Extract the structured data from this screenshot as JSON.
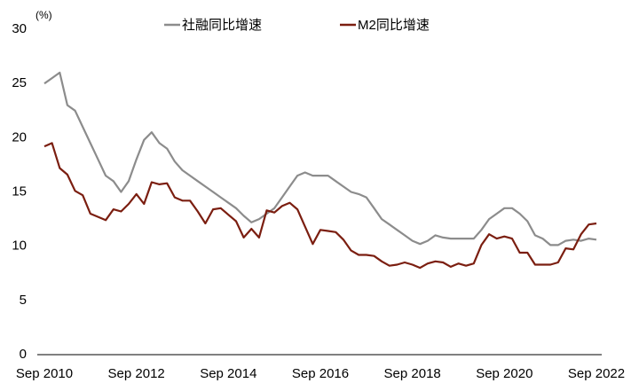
{
  "chart_data": {
    "type": "line",
    "y_label": "(%)",
    "categories": [
      "Sep 2010",
      null,
      null,
      null,
      null,
      null,
      null,
      null,
      null,
      null,
      null,
      null,
      "Sep 2012",
      null,
      null,
      null,
      null,
      null,
      null,
      null,
      null,
      null,
      null,
      null,
      "Sep 2014",
      null,
      null,
      null,
      null,
      null,
      null,
      null,
      null,
      null,
      null,
      null,
      "Sep 2016",
      null,
      null,
      null,
      null,
      null,
      null,
      null,
      null,
      null,
      null,
      null,
      "Sep 2018",
      null,
      null,
      null,
      null,
      null,
      null,
      null,
      null,
      null,
      null,
      null,
      "Sep 2020",
      null,
      null,
      null,
      null,
      null,
      null,
      null,
      null,
      null,
      null,
      null,
      "Sep 2022"
    ],
    "series": [
      {
        "name": "社融同比增速",
        "color": "#8c8c8c",
        "values": [
          25,
          25.5,
          26,
          23,
          22.5,
          21,
          19.5,
          18,
          16.5,
          16,
          15,
          16,
          18,
          19.8,
          20.5,
          19.5,
          19,
          17.8,
          17,
          16.5,
          16,
          15.5,
          15,
          14.5,
          14,
          13.5,
          12.8,
          12.2,
          12.5,
          13,
          13.5,
          14.5,
          15.5,
          16.5,
          16.8,
          16.5,
          16.5,
          16.5,
          16,
          15.5,
          15,
          14.8,
          14.5,
          13.5,
          12.5,
          12,
          11.5,
          11,
          10.5,
          10.2,
          10.5,
          11,
          10.8,
          10.7,
          10.7,
          10.7,
          10.7,
          11.5,
          12.5,
          13,
          13.5,
          13.5,
          13,
          12.3,
          11,
          10.7,
          10.1,
          10.1,
          10.5,
          10.6,
          10.5,
          10.7,
          10.6
        ]
      },
      {
        "name": "M2同比增速",
        "color": "#7b1e10",
        "values": [
          19.2,
          19.5,
          17.2,
          16.6,
          15.1,
          14.7,
          13,
          12.7,
          12.4,
          13.4,
          13.2,
          13.9,
          14.8,
          13.9,
          15.9,
          15.7,
          15.8,
          14.5,
          14.2,
          14.2,
          13.2,
          12.1,
          13.4,
          13.5,
          12.9,
          12.3,
          10.8,
          11.6,
          10.8,
          13.3,
          13.1,
          13.7,
          14,
          13.4,
          11.8,
          10.2,
          11.5,
          11.4,
          11.3,
          10.6,
          9.6,
          9.2,
          9.2,
          9.1,
          8.6,
          8.2,
          8.3,
          8.5,
          8.3,
          8,
          8.4,
          8.6,
          8.5,
          8.1,
          8.4,
          8.2,
          8.4,
          10.1,
          11.1,
          10.7,
          10.9,
          10.7,
          9.4,
          9.4,
          8.3,
          8.3,
          8.3,
          8.5,
          9.8,
          9.7,
          11.1,
          12,
          12.1
        ]
      }
    ],
    "ylim": [
      0,
      30
    ],
    "yticks": [
      0,
      5,
      10,
      15,
      20,
      25,
      30
    ],
    "grid": false
  }
}
